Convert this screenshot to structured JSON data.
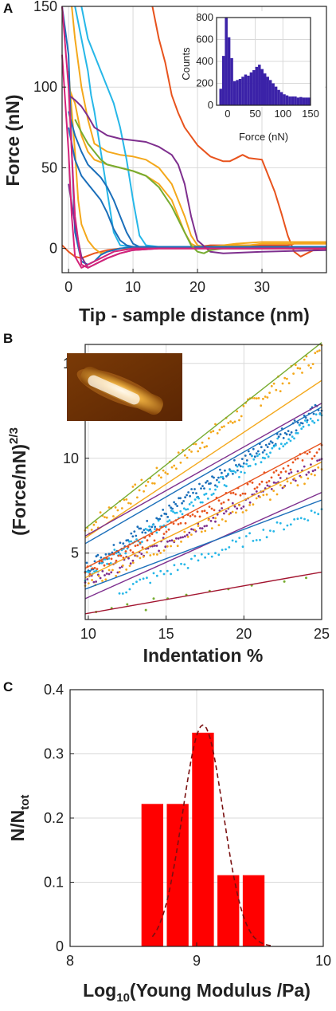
{
  "chart_data": [
    {
      "panel": "A",
      "type": "line",
      "xlabel": "Tip - sample distance (nm)",
      "ylabel": "Force (nN)",
      "xlim": [
        -1,
        40
      ],
      "ylim": [
        -15,
        150
      ],
      "xticks": [
        0,
        10,
        20,
        30
      ],
      "yticks": [
        0,
        50,
        100,
        150
      ],
      "grid": true,
      "series": [
        {
          "color": "#e8531d",
          "x": [
            -1,
            0,
            1,
            2,
            4,
            6,
            8,
            10,
            12,
            15,
            18,
            20,
            22,
            24,
            25,
            26,
            27,
            29,
            31,
            33,
            34,
            35,
            36,
            37,
            40
          ],
          "y": [
            2,
            -2,
            -5,
            -6,
            -3,
            -1,
            0,
            0,
            1,
            1,
            1,
            1,
            2,
            2,
            2,
            2,
            2,
            2,
            2,
            2,
            2,
            3,
            3,
            3,
            3
          ]
        },
        {
          "color": "#e8531d",
          "x": [
            13,
            14,
            15,
            16,
            17,
            18,
            20,
            22,
            24,
            25,
            26,
            27,
            28,
            30,
            31,
            32,
            33,
            34,
            35,
            36,
            37,
            38,
            39,
            40
          ],
          "y": [
            150,
            130,
            115,
            95,
            84,
            75,
            64,
            57,
            54,
            54,
            56,
            58,
            56,
            55,
            45,
            35,
            22,
            8,
            -2,
            -5,
            -3,
            -1,
            0,
            0
          ]
        },
        {
          "color": "#f4a81b",
          "x": [
            0.5,
            1,
            2,
            3,
            4,
            6,
            8,
            10,
            12,
            14,
            16,
            18,
            19,
            20,
            21,
            22,
            24,
            26,
            30,
            34,
            40
          ],
          "y": [
            150,
            130,
            100,
            80,
            65,
            60,
            58,
            57,
            55,
            50,
            40,
            20,
            8,
            2,
            1,
            1,
            2,
            3,
            4,
            4,
            4
          ]
        },
        {
          "color": "#f4a81b",
          "x": [
            0,
            1,
            2,
            3,
            4,
            6,
            8,
            10,
            12,
            14,
            16,
            17,
            18,
            19,
            20,
            22,
            24,
            26,
            28,
            30,
            34,
            40
          ],
          "y": [
            100,
            90,
            70,
            60,
            55,
            52,
            50,
            48,
            45,
            40,
            30,
            20,
            10,
            3,
            1,
            0,
            1,
            2,
            2,
            3,
            3,
            3
          ]
        },
        {
          "color": "#f4a81b",
          "x": [
            0,
            1,
            1.5,
            2,
            3,
            4,
            5,
            6,
            7,
            8,
            10,
            14,
            20,
            30,
            40
          ],
          "y": [
            110,
            60,
            30,
            15,
            5,
            0,
            -3,
            -2,
            -1,
            0,
            0,
            0,
            0,
            0,
            0
          ]
        },
        {
          "color": "#26b7e8",
          "x": [
            2,
            3,
            4,
            5,
            6,
            7,
            8,
            9,
            10,
            11,
            12,
            14,
            20,
            30,
            40
          ],
          "y": [
            150,
            130,
            120,
            110,
            100,
            90,
            75,
            55,
            30,
            8,
            2,
            1,
            1,
            1,
            1
          ]
        },
        {
          "color": "#26b7e8",
          "x": [
            1,
            2,
            3,
            3.5,
            4,
            5,
            6,
            7,
            8,
            10,
            14,
            20,
            30,
            40
          ],
          "y": [
            150,
            130,
            110,
            95,
            85,
            60,
            35,
            10,
            2,
            1,
            1,
            1,
            1,
            1
          ]
        },
        {
          "color": "#1b6fba",
          "x": [
            0,
            1,
            2,
            3,
            4,
            5,
            6,
            7,
            8,
            9,
            10,
            11,
            12,
            14,
            20,
            30,
            40
          ],
          "y": [
            85,
            70,
            60,
            52,
            48,
            44,
            38,
            30,
            20,
            10,
            3,
            1,
            1,
            1,
            1,
            1,
            1
          ]
        },
        {
          "color": "#1b6fba",
          "x": [
            0,
            1,
            2,
            3,
            4,
            5,
            6,
            7,
            8,
            9,
            10,
            14,
            20,
            30,
            40
          ],
          "y": [
            75,
            55,
            45,
            40,
            35,
            30,
            22,
            12,
            5,
            2,
            1,
            1,
            1,
            1,
            1
          ]
        },
        {
          "color": "#1b6fba",
          "x": [
            -1,
            0,
            0.5,
            1,
            2,
            3,
            4,
            5,
            6,
            8,
            10,
            14,
            20,
            30,
            40
          ],
          "y": [
            150,
            120,
            60,
            10,
            -8,
            -10,
            -8,
            -4,
            -2,
            0,
            1,
            1,
            1,
            1,
            1
          ]
        },
        {
          "color": "#7e2f8e",
          "x": [
            0,
            1,
            2,
            3,
            4,
            6,
            8,
            10,
            12,
            14,
            16,
            17,
            18,
            19,
            20,
            22,
            24,
            30,
            40
          ],
          "y": [
            95,
            92,
            88,
            82,
            75,
            70,
            68,
            67,
            66,
            63,
            58,
            52,
            40,
            20,
            5,
            -2,
            -3,
            -2,
            -1
          ]
        },
        {
          "color": "#7e2f8e",
          "x": [
            0,
            1,
            2,
            3,
            4,
            6,
            8,
            10,
            14,
            20,
            30,
            40
          ],
          "y": [
            40,
            15,
            -5,
            -12,
            -10,
            -6,
            -3,
            -1,
            0,
            0,
            0,
            0
          ]
        },
        {
          "color": "#77ac30",
          "x": [
            1,
            2,
            3,
            4,
            5,
            6,
            8,
            10,
            12,
            14,
            16,
            18,
            19,
            20,
            21,
            22,
            24,
            26,
            30,
            40
          ],
          "y": [
            80,
            72,
            65,
            60,
            55,
            52,
            50,
            48,
            45,
            38,
            26,
            10,
            2,
            -2,
            -3,
            -1,
            0,
            0,
            0,
            0
          ]
        },
        {
          "color": "#d4237a",
          "x": [
            -1,
            0,
            0.5,
            1,
            2,
            3,
            4,
            6,
            8,
            10,
            14,
            20,
            30,
            40
          ],
          "y": [
            150,
            100,
            60,
            20,
            -10,
            -12,
            -10,
            -6,
            -3,
            -1,
            0,
            0,
            0,
            0
          ]
        },
        {
          "color": "#d4237a",
          "x": [
            -1,
            0,
            0.5,
            1,
            2,
            3,
            5,
            7,
            10,
            14,
            20,
            30,
            40
          ],
          "y": [
            120,
            60,
            20,
            -5,
            -12,
            -10,
            -6,
            -2,
            0,
            0,
            0,
            0,
            0
          ]
        }
      ],
      "inset": {
        "type": "bar",
        "xlabel": "Force (nN)",
        "ylabel": "Counts",
        "xlim": [
          -20,
          150
        ],
        "ylim": [
          0,
          800
        ],
        "xticks": [
          0,
          50,
          100,
          150
        ],
        "yticks": [
          0,
          200,
          400,
          600,
          800
        ],
        "color": "#3b22a8",
        "bin_width": 5,
        "bin_starts": [
          -15,
          -10,
          -5,
          0,
          5,
          10,
          15,
          20,
          25,
          30,
          35,
          40,
          45,
          50,
          55,
          60,
          65,
          70,
          75,
          80,
          85,
          90,
          95,
          100,
          105,
          110,
          115,
          120,
          125,
          130,
          135,
          140,
          145
        ],
        "values": [
          150,
          450,
          800,
          620,
          430,
          220,
          230,
          240,
          260,
          280,
          270,
          300,
          320,
          350,
          370,
          330,
          290,
          260,
          230,
          200,
          170,
          140,
          120,
          100,
          90,
          80,
          80,
          80,
          70,
          75,
          70,
          70,
          70
        ]
      }
    },
    {
      "panel": "B",
      "type": "scatter",
      "xlabel": "Indentation %",
      "ylabel": "(Force/nN)",
      "ylabel_exponent": "2/3",
      "xlim": [
        9.8,
        25
      ],
      "ylim": [
        1.5,
        16
      ],
      "xticks": [
        10,
        15,
        20,
        25
      ],
      "yticks": [
        5,
        10,
        15
      ],
      "grid": true,
      "series": [
        {
          "color": "#77ac30",
          "fit": [
            [
              9.8,
              6.3
            ],
            [
              25,
              16.1
            ]
          ],
          "pts": [
            [
              10.5,
              1.9
            ],
            [
              11.5,
              2.1
            ],
            [
              12.5,
              2.3
            ],
            [
              13.7,
              2.0
            ],
            [
              14.2,
              2.6
            ],
            [
              15.1,
              2.6
            ],
            [
              16.3,
              2.8
            ],
            [
              17.8,
              3.0
            ],
            [
              19.0,
              3.1
            ],
            [
              20.5,
              3.3
            ],
            [
              22.6,
              3.5
            ],
            [
              24.0,
              3.7
            ]
          ]
        },
        {
          "color": "#f4a81b",
          "fit": [
            [
              9.8,
              5.8
            ],
            [
              25,
              14.1
            ]
          ],
          "pts": []
        },
        {
          "color": "#f4a81b",
          "fit": [
            [
              9.8,
              3.7
            ],
            [
              25,
              9.8
            ]
          ],
          "pts": []
        },
        {
          "color": "#7e2f8e",
          "fit": [
            [
              9.8,
              5.9
            ],
            [
              25,
              12.9
            ]
          ],
          "pts": []
        },
        {
          "color": "#7e2f8e",
          "fit": [
            [
              9.8,
              2.6
            ],
            [
              25,
              8.2
            ]
          ],
          "pts": []
        },
        {
          "color": "#1b6fba",
          "fit": [
            [
              9.8,
              5.5
            ],
            [
              25,
              12.7
            ]
          ],
          "pts": []
        },
        {
          "color": "#1b6fba",
          "fit": [
            [
              9.8,
              3.1
            ],
            [
              25,
              7.8
            ]
          ],
          "pts": []
        },
        {
          "color": "#e8531d",
          "fit": [
            [
              9.8,
              4.2
            ],
            [
              25,
              10.8
            ]
          ],
          "pts": []
        },
        {
          "color": "#a2142f",
          "fit": [
            [
              9.8,
              1.8
            ],
            [
              25,
              4.0
            ]
          ],
          "pts": []
        }
      ],
      "dot_series": [
        {
          "color": "#f4a81b",
          "base": [
            9.8,
            6.2
          ],
          "slope": 0.62,
          "noise": 0.45,
          "n": 110
        },
        {
          "color": "#1b6fba",
          "base": [
            9.8,
            4.2
          ],
          "slope": 0.56,
          "noise": 0.35,
          "n": 150
        },
        {
          "color": "#26b7e8",
          "base": [
            9.8,
            3.8
          ],
          "slope": 0.56,
          "noise": 0.35,
          "n": 130
        },
        {
          "color": "#e8531d",
          "base": [
            9.8,
            4.0
          ],
          "slope": 0.43,
          "noise": 0.3,
          "n": 100
        },
        {
          "color": "#7e2f8e",
          "base": [
            9.8,
            3.4
          ],
          "slope": 0.42,
          "noise": 0.3,
          "n": 110
        },
        {
          "color": "#f4a81b",
          "base": [
            9.8,
            3.3
          ],
          "slope": 0.4,
          "noise": 0.3,
          "n": 70
        },
        {
          "color": "#26b7e8",
          "base": [
            12.0,
            3.0
          ],
          "slope": 0.33,
          "noise": 0.3,
          "n": 60
        }
      ]
    },
    {
      "panel": "C",
      "type": "bar",
      "xlabel": "Log",
      "xlabel_sub": "10",
      "xlabel_rest": "(Young Modulus /Pa)",
      "ylabel": "N/N",
      "ylabel_sub": "tot",
      "xlim": [
        8,
        10
      ],
      "ylim": [
        0,
        0.4
      ],
      "xticks": [
        8,
        9,
        10
      ],
      "yticks": [
        0,
        0.1,
        0.2,
        0.3,
        0.4
      ],
      "grid": true,
      "bar_color": "#ff0000",
      "bin_width": 0.2,
      "categories": [
        8.65,
        8.85,
        9.05,
        9.25,
        9.45
      ],
      "values": [
        0.222,
        0.222,
        0.333,
        0.111,
        0.111
      ],
      "fit": {
        "type": "gaussian",
        "mean": 9.05,
        "sigma": 0.16,
        "amplitude": 0.345,
        "x_range": [
          8.65,
          9.6
        ],
        "color": "#7a1010",
        "style": "dashed"
      }
    }
  ],
  "panel_labels": {
    "a": "A",
    "b": "B",
    "c": "C"
  }
}
